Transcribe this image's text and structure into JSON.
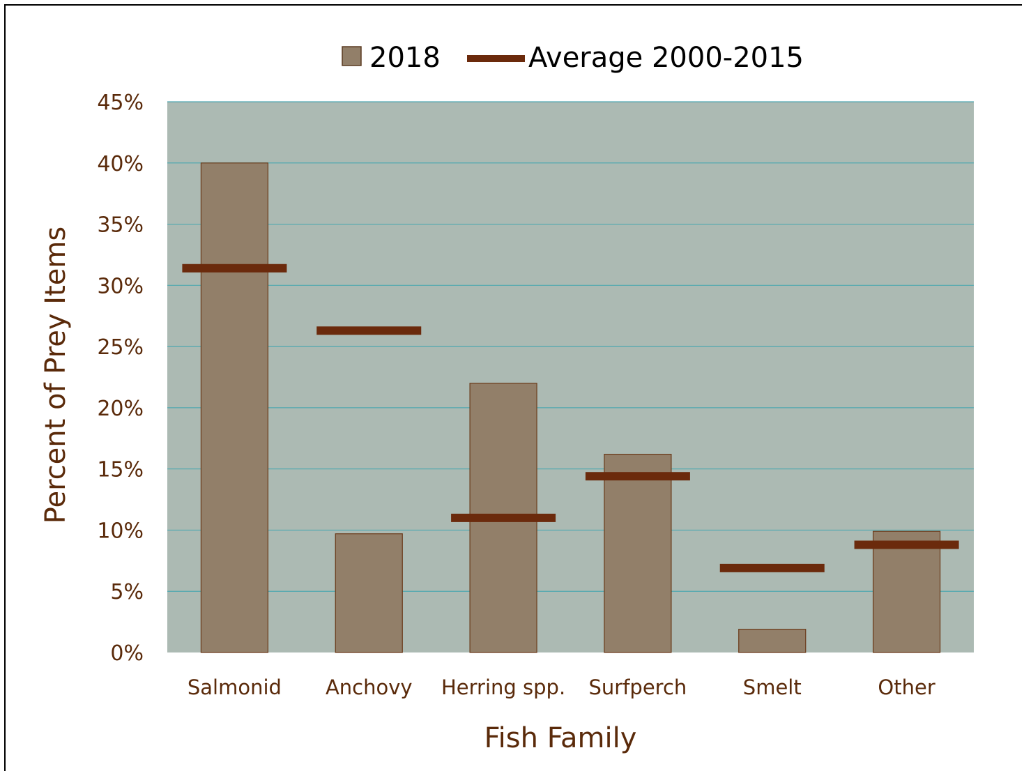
{
  "chart_data": {
    "type": "bar",
    "categories": [
      "Salmonid",
      "Anchovy",
      "Herring spp.",
      "Surfperch",
      "Smelt",
      "Other"
    ],
    "series": [
      {
        "name": "2018",
        "kind": "bar",
        "color": "#927f69",
        "values": [
          40.0,
          9.7,
          22.0,
          16.2,
          1.9,
          9.9
        ]
      },
      {
        "name": "Average 2000-2015",
        "kind": "marker-line",
        "color": "#6b2a0c",
        "values": [
          31.4,
          26.3,
          11.0,
          14.4,
          6.9,
          8.8
        ]
      }
    ],
    "xlabel": "Fish Family",
    "ylabel": "Percent of Prey Items",
    "ylim": [
      0,
      45
    ],
    "yticks": [
      0,
      5,
      10,
      15,
      20,
      25,
      30,
      35,
      40,
      45
    ],
    "ytick_labels": [
      "0%",
      "5%",
      "10%",
      "15%",
      "20%",
      "25%",
      "30%",
      "35%",
      "40%",
      "45%"
    ],
    "grid": true,
    "legend_position": "top-center",
    "plot_background": "#acbab3",
    "grid_color": "#4fa8b0"
  }
}
